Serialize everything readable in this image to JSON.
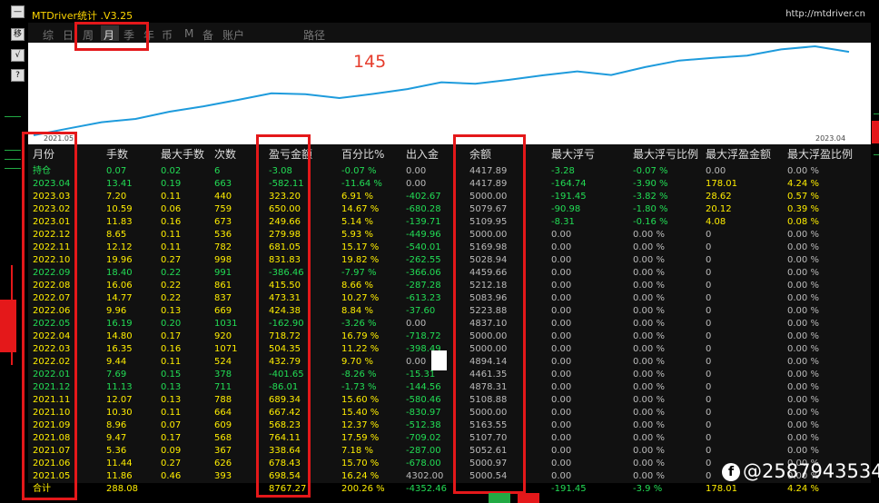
{
  "window": {
    "title": "MTDriver统计 .V3.25",
    "url": "http://mtdriver.cn"
  },
  "side_buttons": [
    "—",
    "移",
    "√",
    "?"
  ],
  "tabs": [
    {
      "label": "综",
      "active": false
    },
    {
      "label": "日",
      "active": false
    },
    {
      "label": "周",
      "active": false
    },
    {
      "label": "月",
      "active": true
    },
    {
      "label": "季",
      "active": false
    },
    {
      "label": "年",
      "active": false
    },
    {
      "label": "币",
      "active": false
    },
    {
      "label": "M",
      "active": false
    },
    {
      "label": "备",
      "active": false
    },
    {
      "label": "账户",
      "active": false
    },
    {
      "label": "路径",
      "active": false
    }
  ],
  "chart": {
    "count_label": "145",
    "start_date": "2021.05",
    "end_date": "2023.04",
    "line_color": "#1e9bdc",
    "balance_series": [
      5000.54,
      5000.97,
      5052.61,
      5107.7,
      5163.55,
      5000.0,
      5108.88,
      4878.31,
      4461.35,
      4894.14,
      5000.0,
      5000.0,
      4837.1,
      5223.88,
      5083.96,
      5212.18,
      4459.66,
      5028.94,
      5169.98,
      5000.0,
      5109.95,
      5079.67,
      5000.0,
      4417.89
    ]
  },
  "table": {
    "headers": [
      "月份",
      "手数",
      "最大手数",
      "次数",
      "盈亏金额",
      "百分比%",
      "出入金",
      "余额",
      "最大浮亏",
      "最大浮亏比例",
      "最大浮盈金额",
      "最大浮盈比例"
    ],
    "rows": [
      [
        "持仓",
        "0.07",
        "0.02",
        "6",
        "-3.08",
        "-0.07 %",
        "0.00",
        "4417.89",
        "-3.28",
        "-0.07 %",
        "0.00",
        "0.00 %"
      ],
      [
        "2023.04",
        "13.41",
        "0.19",
        "663",
        "-582.11",
        "-11.64 %",
        "0.00",
        "4417.89",
        "-164.74",
        "-3.90 %",
        "178.01",
        "4.24 %"
      ],
      [
        "2023.03",
        "7.20",
        "0.11",
        "440",
        "323.20",
        "6.91 %",
        "-402.67",
        "5000.00",
        "-191.45",
        "-3.82 %",
        "28.62",
        "0.57 %"
      ],
      [
        "2023.02",
        "10.59",
        "0.06",
        "759",
        "650.00",
        "14.67 %",
        "-680.28",
        "5079.67",
        "-90.98",
        "-1.80 %",
        "20.12",
        "0.39 %"
      ],
      [
        "2023.01",
        "11.83",
        "0.16",
        "673",
        "249.66",
        "5.14 %",
        "-139.71",
        "5109.95",
        "-8.31",
        "-0.16 %",
        "4.08",
        "0.08 %"
      ],
      [
        "2022.12",
        "8.65",
        "0.11",
        "536",
        "279.98",
        "5.93 %",
        "-449.96",
        "5000.00",
        "0.00",
        "0.00 %",
        "0",
        "0.00 %"
      ],
      [
        "2022.11",
        "12.12",
        "0.11",
        "782",
        "681.05",
        "15.17 %",
        "-540.01",
        "5169.98",
        "0.00",
        "0.00 %",
        "0",
        "0.00 %"
      ],
      [
        "2022.10",
        "19.96",
        "0.27",
        "998",
        "831.83",
        "19.82 %",
        "-262.55",
        "5028.94",
        "0.00",
        "0.00 %",
        "0",
        "0.00 %"
      ],
      [
        "2022.09",
        "18.40",
        "0.22",
        "991",
        "-386.46",
        "-7.97 %",
        "-366.06",
        "4459.66",
        "0.00",
        "0.00 %",
        "0",
        "0.00 %"
      ],
      [
        "2022.08",
        "16.06",
        "0.22",
        "861",
        "415.50",
        "8.66 %",
        "-287.28",
        "5212.18",
        "0.00",
        "0.00 %",
        "0",
        "0.00 %"
      ],
      [
        "2022.07",
        "14.77",
        "0.22",
        "837",
        "473.31",
        "10.27 %",
        "-613.23",
        "5083.96",
        "0.00",
        "0.00 %",
        "0",
        "0.00 %"
      ],
      [
        "2022.06",
        "9.96",
        "0.13",
        "669",
        "424.38",
        "8.84 %",
        "-37.60",
        "5223.88",
        "0.00",
        "0.00 %",
        "0",
        "0.00 %"
      ],
      [
        "2022.05",
        "16.19",
        "0.20",
        "1031",
        "-162.90",
        "-3.26 %",
        "0.00",
        "4837.10",
        "0.00",
        "0.00 %",
        "0",
        "0.00 %"
      ],
      [
        "2022.04",
        "14.80",
        "0.17",
        "920",
        "718.72",
        "16.79 %",
        "-718.72",
        "5000.00",
        "0.00",
        "0.00 %",
        "0",
        "0.00 %"
      ],
      [
        "2022.03",
        "16.35",
        "0.16",
        "1071",
        "504.35",
        "11.22 %",
        "-398.49",
        "5000.00",
        "0.00",
        "0.00 %",
        "0",
        "0.00 %"
      ],
      [
        "2022.02",
        "9.44",
        "0.11",
        "524",
        "432.79",
        "9.70 %",
        "0.00",
        "4894.14",
        "0.00",
        "0.00 %",
        "0",
        "0.00 %"
      ],
      [
        "2022.01",
        "7.69",
        "0.15",
        "378",
        "-401.65",
        "-8.26 %",
        "-15.31",
        "4461.35",
        "0.00",
        "0.00 %",
        "0",
        "0.00 %"
      ],
      [
        "2021.12",
        "11.13",
        "0.13",
        "711",
        "-86.01",
        "-1.73 %",
        "-144.56",
        "4878.31",
        "0.00",
        "0.00 %",
        "0",
        "0.00 %"
      ],
      [
        "2021.11",
        "12.07",
        "0.13",
        "788",
        "689.34",
        "15.60 %",
        "-580.46",
        "5108.88",
        "0.00",
        "0.00 %",
        "0",
        "0.00 %"
      ],
      [
        "2021.10",
        "10.30",
        "0.11",
        "664",
        "667.42",
        "15.40 %",
        "-830.97",
        "5000.00",
        "0.00",
        "0.00 %",
        "0",
        "0.00 %"
      ],
      [
        "2021.09",
        "8.96",
        "0.07",
        "609",
        "568.23",
        "12.37 %",
        "-512.38",
        "5163.55",
        "0.00",
        "0.00 %",
        "0",
        "0.00 %"
      ],
      [
        "2021.08",
        "9.47",
        "0.17",
        "568",
        "764.11",
        "17.59 %",
        "-709.02",
        "5107.70",
        "0.00",
        "0.00 %",
        "0",
        "0.00 %"
      ],
      [
        "2021.07",
        "5.36",
        "0.09",
        "367",
        "338.64",
        "7.18 %",
        "-287.00",
        "5052.61",
        "0.00",
        "0.00 %",
        "0",
        "0.00 %"
      ],
      [
        "2021.06",
        "11.44",
        "0.27",
        "626",
        "678.43",
        "15.70 %",
        "-678.00",
        "5000.97",
        "0.00",
        "0.00 %",
        "0",
        "0.00 %"
      ],
      [
        "2021.05",
        "11.86",
        "0.46",
        "393",
        "698.54",
        "16.24 %",
        "4302.00",
        "5000.54",
        "0.00",
        "0.00 %",
        "0",
        "0.00 %"
      ]
    ],
    "total": [
      "合计",
      "288.08",
      "",
      "",
      "8767.27",
      "200.26 %",
      "-4352.46",
      "",
      "-191.45",
      "-3.9 %",
      "178.01",
      "4.24 %"
    ]
  },
  "watermark": "@2587943534"
}
